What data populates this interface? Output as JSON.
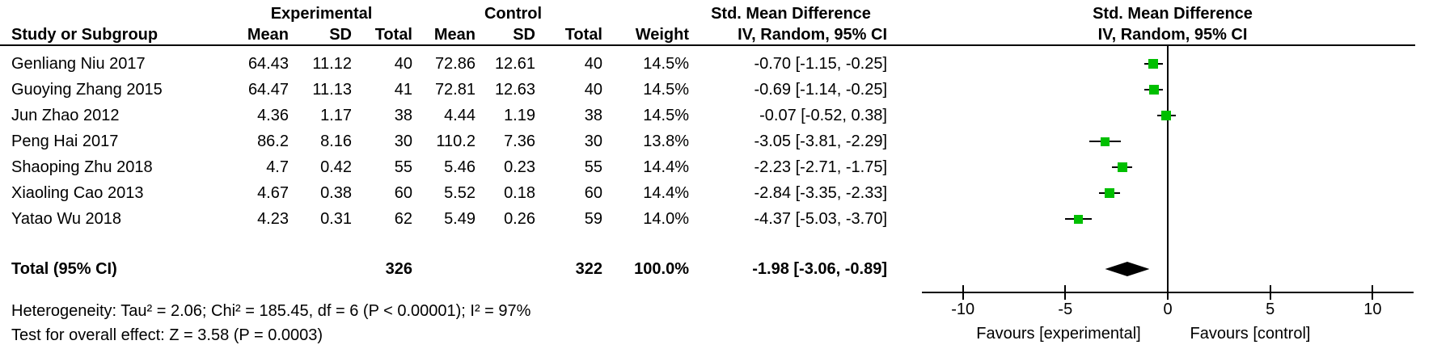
{
  "header": {
    "group_experimental": "Experimental",
    "group_control": "Control",
    "smd_text_col": "Std. Mean Difference",
    "smd_plot_col": "Std. Mean Difference",
    "study": "Study or Subgroup",
    "mean_e": "Mean",
    "sd_e": "SD",
    "total_e": "Total",
    "mean_c": "Mean",
    "sd_c": "SD",
    "total_c": "Total",
    "weight": "Weight",
    "method_text_col": "IV, Random, 95% CI",
    "method_plot_col": "IV, Random, 95% CI"
  },
  "rows": [
    {
      "study": "Genliang Niu 2017",
      "e_mean": "64.43",
      "e_sd": "11.12",
      "e_total": "40",
      "c_mean": "72.86",
      "c_sd": "12.61",
      "c_total": "40",
      "weight": "14.5%",
      "ci": "-0.70 [-1.15, -0.25]"
    },
    {
      "study": "Guoying Zhang 2015",
      "e_mean": "64.47",
      "e_sd": "11.13",
      "e_total": "41",
      "c_mean": "72.81",
      "c_sd": "12.63",
      "c_total": "40",
      "weight": "14.5%",
      "ci": "-0.69 [-1.14, -0.25]"
    },
    {
      "study": "Jun Zhao 2012",
      "e_mean": "4.36",
      "e_sd": "1.17",
      "e_total": "38",
      "c_mean": "4.44",
      "c_sd": "1.19",
      "c_total": "38",
      "weight": "14.5%",
      "ci": "-0.07 [-0.52, 0.38]"
    },
    {
      "study": "Peng Hai 2017",
      "e_mean": "86.2",
      "e_sd": "8.16",
      "e_total": "30",
      "c_mean": "110.2",
      "c_sd": "7.36",
      "c_total": "30",
      "weight": "13.8%",
      "ci": "-3.05 [-3.81, -2.29]"
    },
    {
      "study": "Shaoping Zhu 2018",
      "e_mean": "4.7",
      "e_sd": "0.42",
      "e_total": "55",
      "c_mean": "5.46",
      "c_sd": "0.23",
      "c_total": "55",
      "weight": "14.4%",
      "ci": "-2.23 [-2.71, -1.75]"
    },
    {
      "study": "Xiaoling Cao 2013",
      "e_mean": "4.67",
      "e_sd": "0.38",
      "e_total": "60",
      "c_mean": "5.52",
      "c_sd": "0.18",
      "c_total": "60",
      "weight": "14.4%",
      "ci": "-2.84 [-3.35, -2.33]"
    },
    {
      "study": "Yatao Wu 2018",
      "e_mean": "4.23",
      "e_sd": "0.31",
      "e_total": "62",
      "c_mean": "5.49",
      "c_sd": "0.26",
      "c_total": "59",
      "weight": "14.0%",
      "ci": "-4.37 [-5.03, -3.70]"
    }
  ],
  "total_row": {
    "label": "Total (95% CI)",
    "e_total": "326",
    "c_total": "322",
    "weight": "100.0%",
    "ci": "-1.98 [-3.06, -0.89]"
  },
  "footer": {
    "heterogeneity": "Heterogeneity: Tau² = 2.06; Chi² = 185.45, df = 6 (P < 0.00001); I² = 97%",
    "overall_effect": "Test for overall effect: Z = 3.58 (P = 0.0003)"
  },
  "chart_data": {
    "type": "scatter",
    "subtype": "forest-plot",
    "title": "Std. Mean Difference  IV, Random, 95% CI",
    "xlim": [
      -12,
      12
    ],
    "ticks": [
      -10,
      -5,
      0,
      5,
      10
    ],
    "zero_line": 0,
    "favours_left": "Favours [experimental]",
    "favours_right": "Favours [control]",
    "marker_color": "#00bf00",
    "diamond_color": "#000000",
    "studies": [
      {
        "label": "Genliang Niu 2017",
        "est": -0.7,
        "lo": -1.15,
        "hi": -0.25,
        "weight_pct": 14.5
      },
      {
        "label": "Guoying Zhang 2015",
        "est": -0.69,
        "lo": -1.14,
        "hi": -0.25,
        "weight_pct": 14.5
      },
      {
        "label": "Jun Zhao 2012",
        "est": -0.07,
        "lo": -0.52,
        "hi": 0.38,
        "weight_pct": 14.5
      },
      {
        "label": "Peng Hai 2017",
        "est": -3.05,
        "lo": -3.81,
        "hi": -2.29,
        "weight_pct": 13.8
      },
      {
        "label": "Shaoping Zhu 2018",
        "est": -2.23,
        "lo": -2.71,
        "hi": -1.75,
        "weight_pct": 14.4
      },
      {
        "label": "Xiaoling Cao 2013",
        "est": -2.84,
        "lo": -3.35,
        "hi": -2.33,
        "weight_pct": 14.4
      },
      {
        "label": "Yatao Wu 2018",
        "est": -4.37,
        "lo": -5.03,
        "hi": -3.7,
        "weight_pct": 14.0
      }
    ],
    "total": {
      "est": -1.98,
      "lo": -3.06,
      "hi": -0.89
    }
  }
}
